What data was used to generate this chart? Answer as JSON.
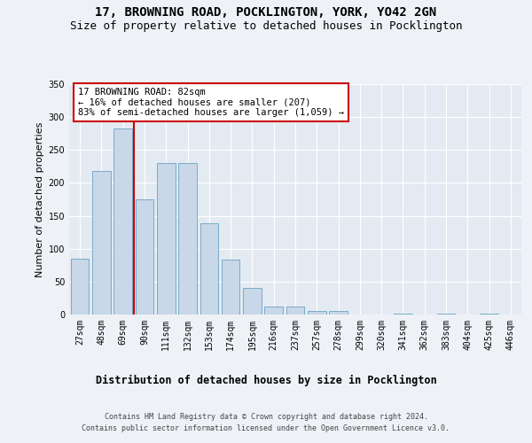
{
  "title_line1": "17, BROWNING ROAD, POCKLINGTON, YORK, YO42 2GN",
  "title_line2": "Size of property relative to detached houses in Pocklington",
  "xlabel": "Distribution of detached houses by size in Pocklington",
  "ylabel": "Number of detached properties",
  "footer_line1": "Contains HM Land Registry data © Crown copyright and database right 2024.",
  "footer_line2": "Contains public sector information licensed under the Open Government Licence v3.0.",
  "bin_labels": [
    "27sqm",
    "48sqm",
    "69sqm",
    "90sqm",
    "111sqm",
    "132sqm",
    "153sqm",
    "174sqm",
    "195sqm",
    "216sqm",
    "237sqm",
    "257sqm",
    "278sqm",
    "299sqm",
    "320sqm",
    "341sqm",
    "362sqm",
    "383sqm",
    "404sqm",
    "425sqm",
    "446sqm"
  ],
  "bar_values": [
    85,
    218,
    283,
    175,
    230,
    230,
    138,
    83,
    40,
    12,
    12,
    5,
    5,
    0,
    0,
    2,
    0,
    1,
    0,
    1,
    0
  ],
  "bar_color": "#c8d8e8",
  "bar_edgecolor": "#7aaac8",
  "vline_color": "#cc0000",
  "annotation_text": "17 BROWNING ROAD: 82sqm\n← 16% of detached houses are smaller (207)\n83% of semi-detached houses are larger (1,059) →",
  "annotation_box_color": "#ffffff",
  "annotation_box_edgecolor": "#cc0000",
  "ylim": [
    0,
    350
  ],
  "yticks": [
    0,
    50,
    100,
    150,
    200,
    250,
    300,
    350
  ],
  "background_color": "#eef2f7",
  "plot_background_color": "#e4eaf2",
  "grid_color": "#ffffff",
  "title_fontsize": 10,
  "subtitle_fontsize": 9,
  "xlabel_fontsize": 8.5,
  "ylabel_fontsize": 8,
  "footer_fontsize": 6,
  "tick_fontsize": 7,
  "ann_fontsize": 7.5
}
